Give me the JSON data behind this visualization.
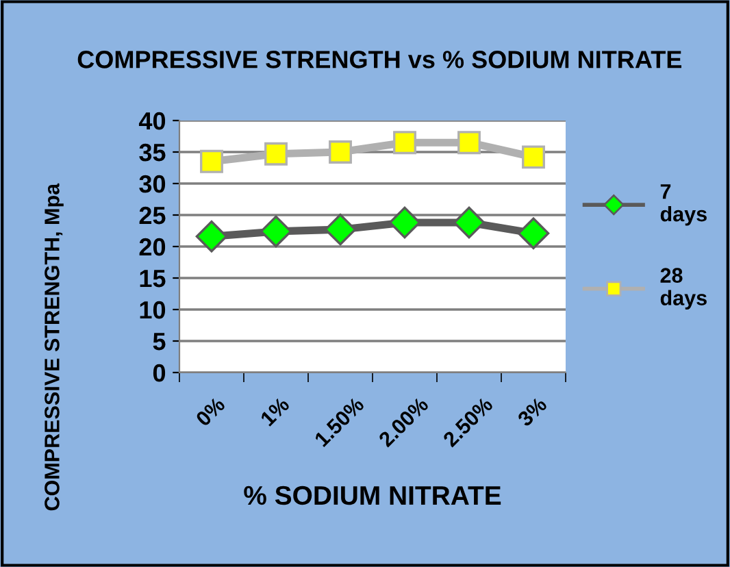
{
  "chart_data": {
    "type": "line",
    "title": "COMPRESSIVE STRENGTH vs % SODIUM NITRATE",
    "xlabel": "% SODIUM NITRATE",
    "ylabel": "COMPRESSIVE STRENGTH, Mpa",
    "categories": [
      "0%",
      "1%",
      "1.50%",
      "2.00%",
      "2.50%",
      "3%"
    ],
    "series": [
      {
        "name": "7 days",
        "color": "#00ff00",
        "marker": "diamond",
        "values": [
          21.6,
          22.4,
          22.7,
          23.8,
          23.8,
          22.1
        ]
      },
      {
        "name": "28 days",
        "color": "#ffff00",
        "marker": "square",
        "values": [
          33.5,
          34.7,
          35.0,
          36.5,
          36.5,
          34.2
        ]
      }
    ],
    "ylim": [
      0,
      40
    ],
    "yticks": [
      0,
      5,
      10,
      15,
      20,
      25,
      30,
      35,
      40
    ],
    "grid": "y",
    "legend": "right"
  }
}
